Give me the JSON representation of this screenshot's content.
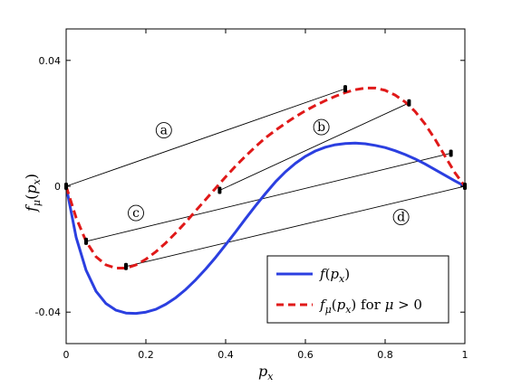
{
  "chart_data": {
    "type": "line",
    "title": "",
    "xlabel": {
      "base": "p",
      "sub": "x"
    },
    "ylabel": {
      "base": "f",
      "sub1": "μ",
      "open": "(",
      "arg": "p",
      "sub2": "x",
      "close": ")"
    },
    "xlim": [
      0,
      1
    ],
    "ylim": [
      -0.05,
      0.05
    ],
    "xticks": [
      {
        "value": 0,
        "label": "0"
      },
      {
        "value": 0.2,
        "label": "0.2"
      },
      {
        "value": 0.4,
        "label": "0.4"
      },
      {
        "value": 0.6,
        "label": "0.6"
      },
      {
        "value": 0.8,
        "label": "0.8"
      },
      {
        "value": 1,
        "label": "1"
      }
    ],
    "yticks": [
      {
        "value": -0.04,
        "label": "-0.04"
      },
      {
        "value": 0,
        "label": "0"
      },
      {
        "value": 0.04,
        "label": "0.04"
      }
    ],
    "grid": false,
    "legend_position": "bottom-right",
    "series": [
      {
        "name": "f(p_x)",
        "legend": {
          "f": "f",
          "open": "(",
          "p": "p",
          "sub": "x",
          "close": ")"
        },
        "color": "#2b3fe0",
        "dash": "solid",
        "x": [
          0,
          0.025,
          0.05,
          0.075,
          0.1,
          0.125,
          0.15,
          0.175,
          0.2,
          0.225,
          0.25,
          0.275,
          0.3,
          0.325,
          0.35,
          0.375,
          0.4,
          0.425,
          0.45,
          0.475,
          0.5,
          0.525,
          0.55,
          0.575,
          0.6,
          0.625,
          0.65,
          0.675,
          0.7,
          0.725,
          0.75,
          0.775,
          0.8,
          0.825,
          0.85,
          0.875,
          0.9,
          0.925,
          0.95,
          0.975,
          1
        ],
        "y": [
          0,
          -0.0162,
          -0.0267,
          -0.0334,
          -0.0373,
          -0.0394,
          -0.0403,
          -0.0404,
          -0.04,
          -0.0391,
          -0.0375,
          -0.0354,
          -0.0328,
          -0.0297,
          -0.0263,
          -0.0226,
          -0.0186,
          -0.0145,
          -0.0103,
          -0.0062,
          -0.0023,
          0.0014,
          0.0046,
          0.0073,
          0.0095,
          0.0112,
          0.0124,
          0.0132,
          0.0136,
          0.0137,
          0.0135,
          0.013,
          0.0123,
          0.0113,
          0.0101,
          0.0087,
          0.0071,
          0.0053,
          0.0035,
          0.0017,
          0
        ]
      },
      {
        "name": "f_mu(p_x) for mu > 0",
        "legend": {
          "f": "f",
          "mu": "μ",
          "open": "(",
          "p": "p",
          "sub": "x",
          "close": ")",
          "text": " for ",
          "mu2": "μ",
          "gt": " > 0"
        },
        "color": "#e01919",
        "dash": "dashed",
        "x": [
          0,
          0.025,
          0.05,
          0.075,
          0.1,
          0.125,
          0.15,
          0.175,
          0.2,
          0.225,
          0.25,
          0.275,
          0.3,
          0.325,
          0.35,
          0.375,
          0.4,
          0.425,
          0.45,
          0.475,
          0.5,
          0.525,
          0.55,
          0.575,
          0.6,
          0.625,
          0.65,
          0.675,
          0.7,
          0.725,
          0.75,
          0.775,
          0.8,
          0.825,
          0.85,
          0.875,
          0.9,
          0.925,
          0.95,
          0.975,
          1
        ],
        "y": [
          0,
          -0.01,
          -0.0175,
          -0.0224,
          -0.025,
          -0.026,
          -0.026,
          -0.025,
          -0.0232,
          -0.0208,
          -0.018,
          -0.0148,
          -0.0114,
          -0.0078,
          -0.0042,
          -0.0006,
          0.003,
          0.0064,
          0.0096,
          0.0126,
          0.0154,
          0.0178,
          0.02,
          0.0221,
          0.024,
          0.0257,
          0.0272,
          0.0286,
          0.0298,
          0.0307,
          0.0312,
          0.0312,
          0.0305,
          0.029,
          0.0268,
          0.0238,
          0.0198,
          0.015,
          0.0096,
          0.0043,
          0
        ]
      }
    ],
    "chords": [
      {
        "label": "a",
        "from": [
          0,
          0
        ],
        "to": [
          0.7,
          0.031
        ],
        "label_at": [
          0.245,
          0.0178
        ]
      },
      {
        "label": "b",
        "from": [
          0.385,
          -0.0013
        ],
        "to": [
          0.86,
          0.0265
        ],
        "label_at": [
          0.64,
          0.0188
        ]
      },
      {
        "label": "c",
        "from": [
          0.05,
          -0.0175
        ],
        "to": [
          0.965,
          0.0105
        ],
        "label_at": [
          0.175,
          -0.0085
        ]
      },
      {
        "label": "d",
        "from": [
          0.15,
          -0.0255
        ],
        "to": [
          1,
          0
        ],
        "label_at": [
          0.84,
          -0.0098
        ]
      }
    ]
  }
}
